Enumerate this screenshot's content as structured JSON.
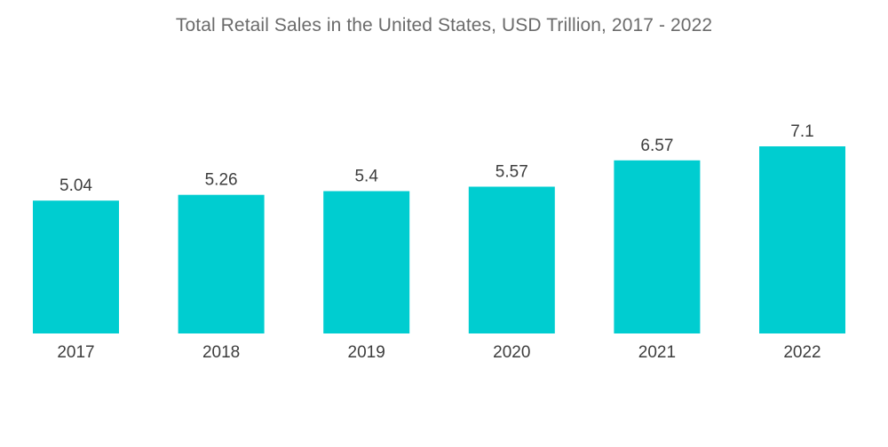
{
  "chart_data": {
    "type": "bar",
    "title": "Total Retail Sales in the United States, USD Trillion,  2017 - 2022",
    "categories": [
      "2017",
      "2018",
      "2019",
      "2020",
      "2021",
      "2022"
    ],
    "values": [
      5.04,
      5.26,
      5.4,
      5.57,
      6.57,
      7.1
    ],
    "data_labels": [
      "5.04",
      "5.26",
      "5.4",
      "5.57",
      "6.57",
      "7.1"
    ],
    "xlabel": "",
    "ylabel": "",
    "ylim": [
      0,
      7.1
    ],
    "grid": false,
    "legend": "none",
    "colors": {
      "bar": "#00cdd0",
      "baseline": "#e6e6e6"
    }
  }
}
